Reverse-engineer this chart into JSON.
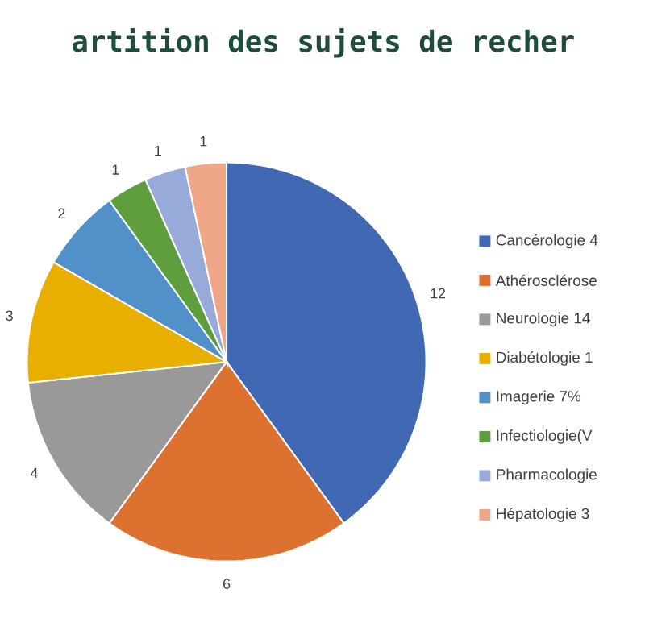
{
  "chart_data": {
    "type": "pie",
    "title": "artition des sujets de recher",
    "categories": [
      "Cancérologie 4",
      "Athérosclérose",
      "Neurologie 14",
      "Diabétologie 1",
      "Imagerie 7%",
      "Infectiologie(V",
      "Pharmacologie",
      "Hépatologie 3"
    ],
    "values": [
      12,
      6,
      4,
      3,
      2,
      1,
      1,
      1
    ],
    "colors": [
      "#4169b3",
      "#dc7130",
      "#999999",
      "#e8ae00",
      "#5290c9",
      "#5e9e3c",
      "#98aad9",
      "#f0a788"
    ],
    "data_labels": true,
    "legend": "right"
  }
}
